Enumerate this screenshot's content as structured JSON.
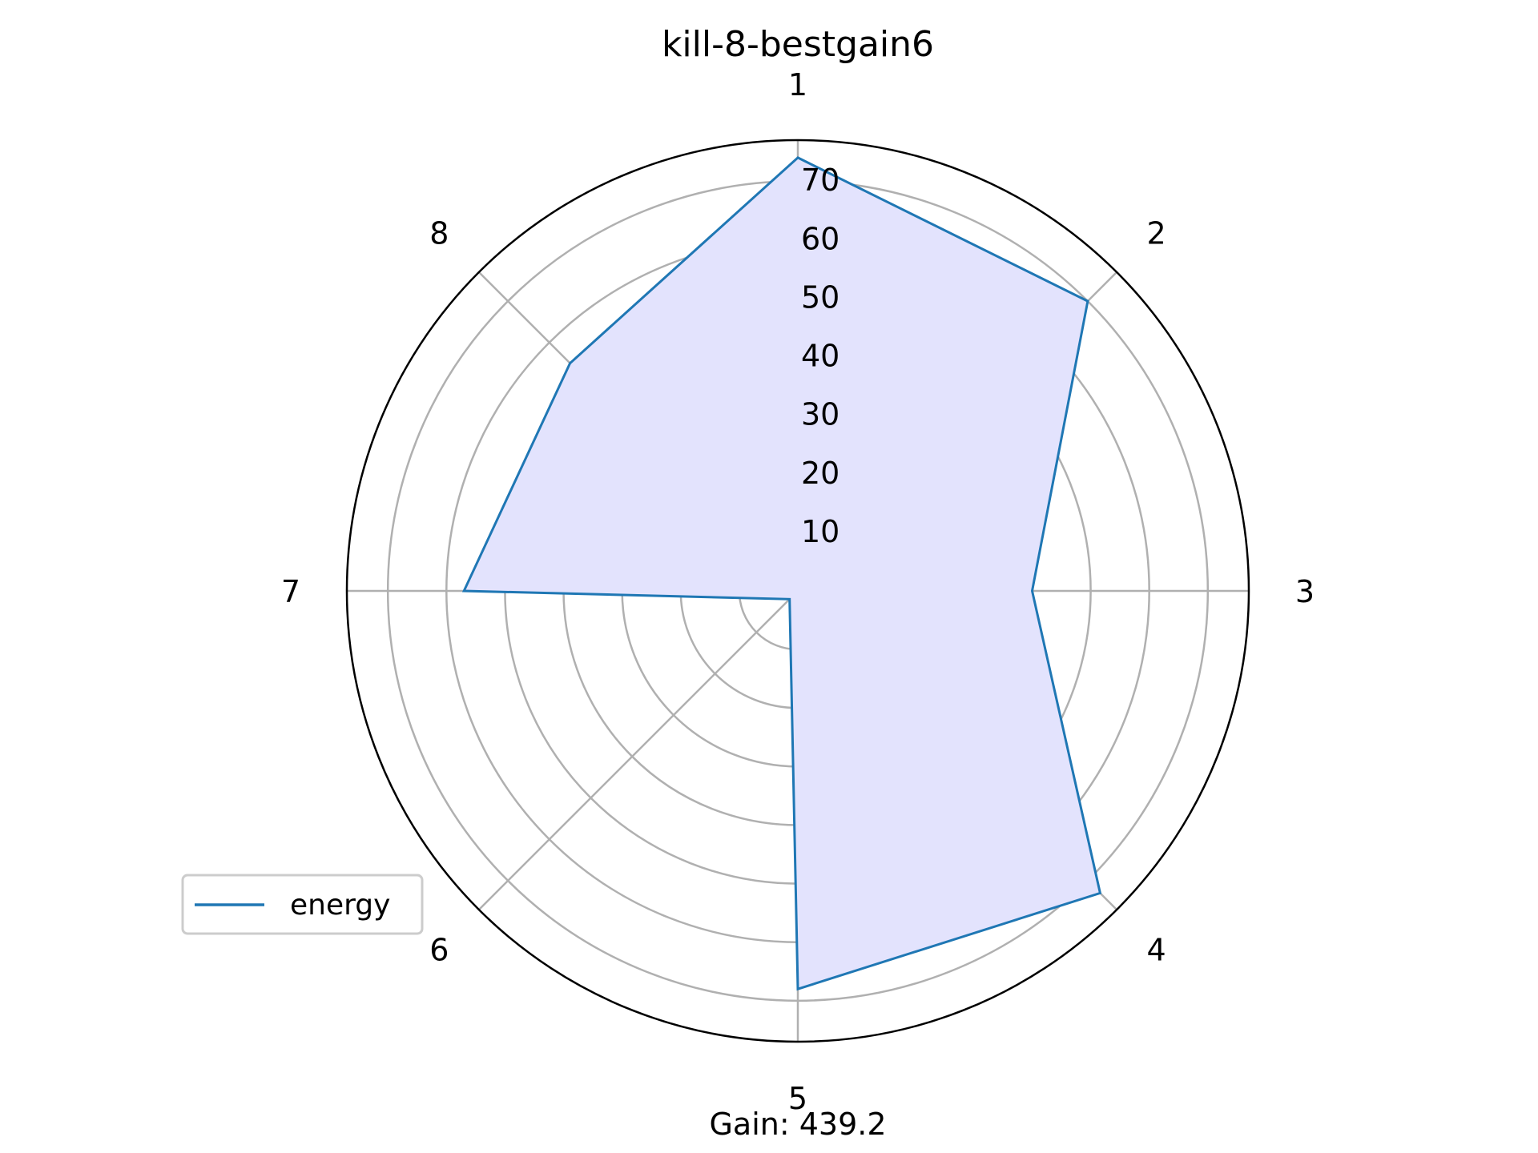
{
  "chart_data": {
    "type": "radar",
    "title": "kill-8-bestgain6",
    "categories": [
      "1",
      "2",
      "3",
      "4",
      "5",
      "6",
      "7",
      "8"
    ],
    "series": [
      {
        "name": "energy",
        "values": [
          74,
          70,
          40,
          73,
          68,
          2,
          57,
          55
        ]
      }
    ],
    "rlim": [
      0,
      77
    ],
    "rticks": [
      10,
      20,
      30,
      40,
      50,
      60,
      70
    ],
    "grid": true,
    "legend": "lower-left",
    "footer": "Gain: 439.2",
    "colors": {
      "line": "#1f77b4",
      "fill": "#e3e3fd",
      "grid": "#b0b0b0",
      "frame": "#000000"
    }
  }
}
